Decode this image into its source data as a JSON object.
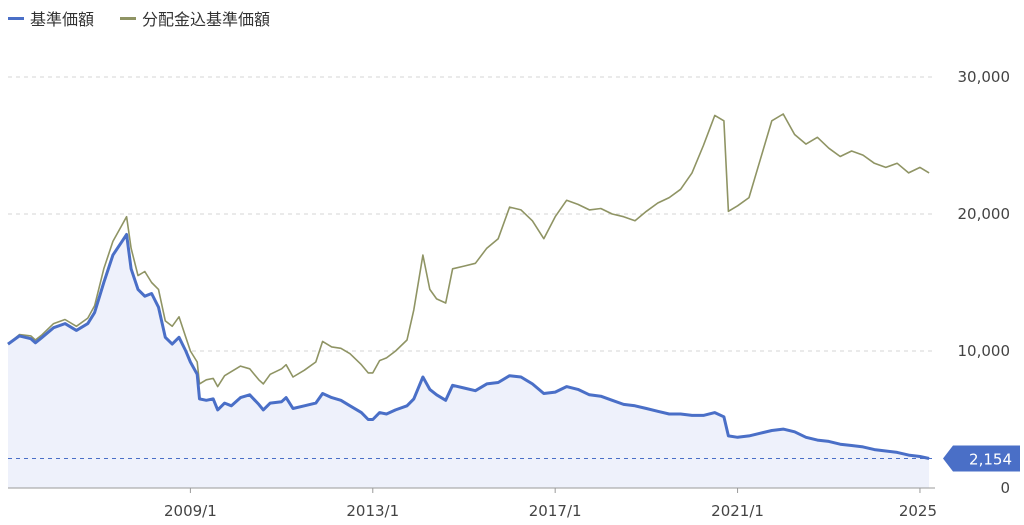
{
  "legend": [
    {
      "label": "基準価額",
      "color": "#4a6fc7"
    },
    {
      "label": "分配金込基準価額",
      "color": "#8f9464"
    }
  ],
  "chart_data": {
    "type": "line",
    "title": "",
    "xlabel": "",
    "ylabel": "",
    "ylim": [
      0,
      30000
    ],
    "yticks": [
      0,
      10000,
      20000,
      30000
    ],
    "ytick_labels": [
      "0",
      "10,000",
      "20,000",
      "30,000"
    ],
    "x_range": [
      2005.0,
      2025.33
    ],
    "xticks": [
      2009.0,
      2013.0,
      2017.0,
      2021.0,
      2025.0
    ],
    "xtick_labels": [
      "2009/1",
      "2013/1",
      "2017/1",
      "2021/1",
      "2025"
    ],
    "grid": true,
    "legend_position": "top-left",
    "last_value_label": "2,154",
    "series": [
      {
        "name": "基準価額",
        "color": "#4a6fc7",
        "fill": "#eef1fb",
        "points": [
          [
            2005.0,
            10500
          ],
          [
            2005.25,
            11100
          ],
          [
            2005.5,
            10900
          ],
          [
            2005.6,
            10600
          ],
          [
            2005.75,
            11000
          ],
          [
            2006.0,
            11700
          ],
          [
            2006.25,
            12000
          ],
          [
            2006.5,
            11500
          ],
          [
            2006.75,
            12000
          ],
          [
            2006.9,
            12800
          ],
          [
            2007.1,
            15000
          ],
          [
            2007.3,
            17000
          ],
          [
            2007.5,
            18000
          ],
          [
            2007.6,
            18500
          ],
          [
            2007.7,
            16000
          ],
          [
            2007.85,
            14500
          ],
          [
            2008.0,
            14000
          ],
          [
            2008.15,
            14200
          ],
          [
            2008.3,
            13200
          ],
          [
            2008.45,
            11000
          ],
          [
            2008.6,
            10500
          ],
          [
            2008.75,
            11000
          ],
          [
            2008.9,
            10000
          ],
          [
            2009.0,
            9200
          ],
          [
            2009.15,
            8300
          ],
          [
            2009.2,
            6500
          ],
          [
            2009.35,
            6400
          ],
          [
            2009.5,
            6500
          ],
          [
            2009.6,
            5700
          ],
          [
            2009.75,
            6200
          ],
          [
            2009.9,
            6000
          ],
          [
            2010.1,
            6600
          ],
          [
            2010.3,
            6800
          ],
          [
            2010.5,
            6100
          ],
          [
            2010.6,
            5700
          ],
          [
            2010.75,
            6200
          ],
          [
            2011.0,
            6300
          ],
          [
            2011.1,
            6600
          ],
          [
            2011.25,
            5800
          ],
          [
            2011.5,
            6000
          ],
          [
            2011.75,
            6200
          ],
          [
            2011.9,
            6900
          ],
          [
            2012.1,
            6600
          ],
          [
            2012.3,
            6400
          ],
          [
            2012.5,
            6000
          ],
          [
            2012.75,
            5500
          ],
          [
            2012.9,
            5000
          ],
          [
            2013.0,
            5000
          ],
          [
            2013.15,
            5500
          ],
          [
            2013.3,
            5400
          ],
          [
            2013.5,
            5700
          ],
          [
            2013.75,
            6000
          ],
          [
            2013.9,
            6500
          ],
          [
            2014.1,
            8100
          ],
          [
            2014.25,
            7200
          ],
          [
            2014.4,
            6800
          ],
          [
            2014.6,
            6400
          ],
          [
            2014.75,
            7500
          ],
          [
            2015.0,
            7300
          ],
          [
            2015.25,
            7100
          ],
          [
            2015.5,
            7600
          ],
          [
            2015.75,
            7700
          ],
          [
            2016.0,
            8200
          ],
          [
            2016.25,
            8100
          ],
          [
            2016.5,
            7600
          ],
          [
            2016.75,
            6900
          ],
          [
            2017.0,
            7000
          ],
          [
            2017.25,
            7400
          ],
          [
            2017.5,
            7200
          ],
          [
            2017.75,
            6800
          ],
          [
            2018.0,
            6700
          ],
          [
            2018.25,
            6400
          ],
          [
            2018.5,
            6100
          ],
          [
            2018.75,
            6000
          ],
          [
            2019.0,
            5800
          ],
          [
            2019.25,
            5600
          ],
          [
            2019.5,
            5400
          ],
          [
            2019.75,
            5400
          ],
          [
            2020.0,
            5300
          ],
          [
            2020.25,
            5300
          ],
          [
            2020.5,
            5500
          ],
          [
            2020.7,
            5200
          ],
          [
            2020.8,
            3800
          ],
          [
            2021.0,
            3700
          ],
          [
            2021.25,
            3800
          ],
          [
            2021.5,
            4000
          ],
          [
            2021.75,
            4200
          ],
          [
            2022.0,
            4300
          ],
          [
            2022.25,
            4100
          ],
          [
            2022.5,
            3700
          ],
          [
            2022.75,
            3500
          ],
          [
            2023.0,
            3400
          ],
          [
            2023.25,
            3200
          ],
          [
            2023.5,
            3100
          ],
          [
            2023.75,
            3000
          ],
          [
            2024.0,
            2800
          ],
          [
            2024.25,
            2700
          ],
          [
            2024.5,
            2600
          ],
          [
            2024.75,
            2400
          ],
          [
            2025.0,
            2300
          ],
          [
            2025.2,
            2154
          ]
        ]
      },
      {
        "name": "分配金込基準価額",
        "color": "#8f9464",
        "points": [
          [
            2005.0,
            10500
          ],
          [
            2005.25,
            11200
          ],
          [
            2005.5,
            11100
          ],
          [
            2005.6,
            10800
          ],
          [
            2005.75,
            11200
          ],
          [
            2006.0,
            12000
          ],
          [
            2006.25,
            12300
          ],
          [
            2006.5,
            11800
          ],
          [
            2006.75,
            12400
          ],
          [
            2006.9,
            13300
          ],
          [
            2007.1,
            16000
          ],
          [
            2007.3,
            18000
          ],
          [
            2007.5,
            19200
          ],
          [
            2007.6,
            19800
          ],
          [
            2007.7,
            17500
          ],
          [
            2007.85,
            15500
          ],
          [
            2008.0,
            15800
          ],
          [
            2008.15,
            15000
          ],
          [
            2008.3,
            14500
          ],
          [
            2008.45,
            12200
          ],
          [
            2008.6,
            11800
          ],
          [
            2008.75,
            12500
          ],
          [
            2008.9,
            11000
          ],
          [
            2009.0,
            10000
          ],
          [
            2009.15,
            9200
          ],
          [
            2009.2,
            7600
          ],
          [
            2009.35,
            7900
          ],
          [
            2009.5,
            8000
          ],
          [
            2009.6,
            7400
          ],
          [
            2009.75,
            8200
          ],
          [
            2009.9,
            8500
          ],
          [
            2010.1,
            8900
          ],
          [
            2010.3,
            8700
          ],
          [
            2010.5,
            7900
          ],
          [
            2010.6,
            7600
          ],
          [
            2010.75,
            8300
          ],
          [
            2011.0,
            8700
          ],
          [
            2011.1,
            9000
          ],
          [
            2011.25,
            8100
          ],
          [
            2011.5,
            8600
          ],
          [
            2011.75,
            9200
          ],
          [
            2011.9,
            10700
          ],
          [
            2012.1,
            10300
          ],
          [
            2012.3,
            10200
          ],
          [
            2012.5,
            9800
          ],
          [
            2012.75,
            9000
          ],
          [
            2012.9,
            8400
          ],
          [
            2013.0,
            8400
          ],
          [
            2013.15,
            9300
          ],
          [
            2013.3,
            9500
          ],
          [
            2013.5,
            10000
          ],
          [
            2013.75,
            10800
          ],
          [
            2013.9,
            13000
          ],
          [
            2014.1,
            17000
          ],
          [
            2014.25,
            14500
          ],
          [
            2014.4,
            13800
          ],
          [
            2014.6,
            13500
          ],
          [
            2014.75,
            16000
          ],
          [
            2015.0,
            16200
          ],
          [
            2015.25,
            16400
          ],
          [
            2015.5,
            17500
          ],
          [
            2015.75,
            18200
          ],
          [
            2016.0,
            20500
          ],
          [
            2016.25,
            20300
          ],
          [
            2016.5,
            19500
          ],
          [
            2016.75,
            18200
          ],
          [
            2017.0,
            19800
          ],
          [
            2017.25,
            21000
          ],
          [
            2017.5,
            20700
          ],
          [
            2017.75,
            20300
          ],
          [
            2018.0,
            20400
          ],
          [
            2018.25,
            20000
          ],
          [
            2018.5,
            19800
          ],
          [
            2018.75,
            19500
          ],
          [
            2019.0,
            20200
          ],
          [
            2019.25,
            20800
          ],
          [
            2019.5,
            21200
          ],
          [
            2019.75,
            21800
          ],
          [
            2020.0,
            23000
          ],
          [
            2020.25,
            25000
          ],
          [
            2020.5,
            27200
          ],
          [
            2020.7,
            26800
          ],
          [
            2020.8,
            20200
          ],
          [
            2021.0,
            20600
          ],
          [
            2021.25,
            21200
          ],
          [
            2021.5,
            24000
          ],
          [
            2021.75,
            26800
          ],
          [
            2022.0,
            27300
          ],
          [
            2022.25,
            25800
          ],
          [
            2022.5,
            25100
          ],
          [
            2022.75,
            25600
          ],
          [
            2023.0,
            24800
          ],
          [
            2023.25,
            24200
          ],
          [
            2023.5,
            24600
          ],
          [
            2023.75,
            24300
          ],
          [
            2024.0,
            23700
          ],
          [
            2024.25,
            23400
          ],
          [
            2024.5,
            23700
          ],
          [
            2024.75,
            23000
          ],
          [
            2025.0,
            23400
          ],
          [
            2025.2,
            23000
          ]
        ]
      }
    ]
  }
}
